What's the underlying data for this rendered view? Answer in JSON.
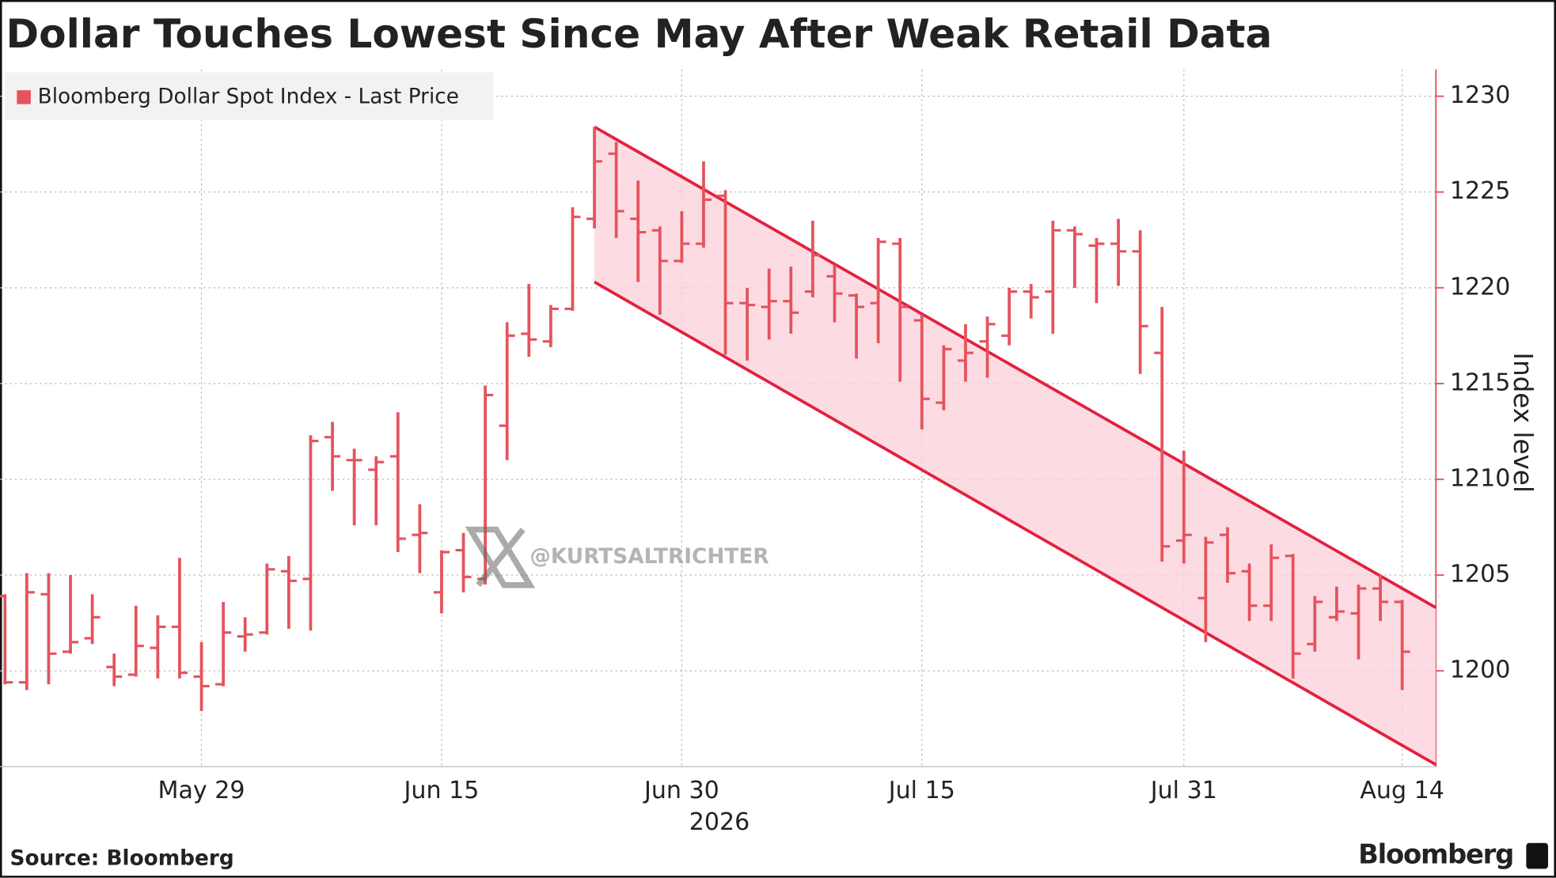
{
  "chart_data": {
    "type": "ohlc",
    "title": "Dollar Touches Lowest Since May After Weak Retail Data",
    "source": "Source: Bloomberg",
    "brand": "Bloomberg",
    "watermark": "@KURTSALTRICHTER",
    "y_label": "Index level",
    "x_axis_year": "2026",
    "grid": true,
    "legend": "top-left",
    "x": [
      "2026-05-18",
      "2026-05-19",
      "2026-05-20",
      "2026-05-21",
      "2026-05-22",
      "2026-05-25",
      "2026-05-26",
      "2026-05-27",
      "2026-05-28",
      "2026-05-29",
      "2026-06-01",
      "2026-06-02",
      "2026-06-03",
      "2026-06-04",
      "2026-06-05",
      "2026-06-08",
      "2026-06-09",
      "2026-06-10",
      "2026-06-11",
      "2026-06-12",
      "2026-06-15",
      "2026-06-16",
      "2026-06-17",
      "2026-06-18",
      "2026-06-19",
      "2026-06-22",
      "2026-06-23",
      "2026-06-24",
      "2026-06-25",
      "2026-06-26",
      "2026-06-29",
      "2026-06-30",
      "2026-07-01",
      "2026-07-02",
      "2026-07-03",
      "2026-07-06",
      "2026-07-07",
      "2026-07-08",
      "2026-07-09",
      "2026-07-10",
      "2026-07-13",
      "2026-07-14",
      "2026-07-15",
      "2026-07-16",
      "2026-07-17",
      "2026-07-20",
      "2026-07-21",
      "2026-07-22",
      "2026-07-23",
      "2026-07-24",
      "2026-07-27",
      "2026-07-28",
      "2026-07-29",
      "2026-07-30",
      "2026-07-31",
      "2026-08-03",
      "2026-08-04",
      "2026-08-05",
      "2026-08-06",
      "2026-08-07",
      "2026-08-10",
      "2026-08-11",
      "2026-08-12",
      "2026-08-13",
      "2026-08-14"
    ],
    "xticks": [
      {
        "value": "2026-05-29",
        "label": "May 29"
      },
      {
        "value": "2026-06-15",
        "label": "Jun 15"
      },
      {
        "value": "2026-06-30",
        "label": "Jun 30"
      },
      {
        "value": "2026-07-15",
        "label": "Jul 15"
      },
      {
        "value": "2026-07-31",
        "label": "Jul 31"
      },
      {
        "value": "2026-08-14",
        "label": "Aug 14"
      }
    ],
    "ylim": [
      1195,
      1231.4
    ],
    "yticks": [
      1200,
      1205,
      1210,
      1215,
      1220,
      1225,
      1230
    ],
    "series": [
      {
        "name": "Bloomberg Dollar Spot Index - Last Price",
        "color": "#e5535d",
        "open": [
          1203.9,
          1199.4,
          1204.0,
          1201.0,
          1201.7,
          1200.2,
          1199.8,
          1201.2,
          1202.3,
          1199.7,
          1199.3,
          1201.8,
          1202.0,
          1205.2,
          1204.8,
          1212.2,
          1211.0,
          1210.5,
          1211.2,
          1207.1,
          1204.1,
          1206.3,
          1204.8,
          1212.8,
          1217.6,
          1217.2,
          1218.9,
          1223.6,
          1227.0,
          1223.6,
          1223.0,
          1221.4,
          1222.3,
          1224.8,
          1219.2,
          1219.0,
          1219.3,
          1219.8,
          1220.6,
          1219.6,
          1219.2,
          1222.3,
          1218.3,
          1214.0,
          1216.2,
          1217.2,
          1217.5,
          1219.8,
          1219.8,
          1223.0,
          1222.2,
          1222.3,
          1221.9,
          1216.6,
          1206.8,
          1203.8,
          1207.1,
          1205.2,
          1203.4,
          1206.0,
          1201.4,
          1202.8,
          1203.0,
          1204.3,
          1203.6
        ],
        "high": [
          1204.0,
          1205.1,
          1205.1,
          1205.0,
          1204.0,
          1200.9,
          1203.4,
          1202.9,
          1205.9,
          1201.5,
          1203.6,
          1202.8,
          1205.6,
          1206.0,
          1212.3,
          1213.0,
          1211.6,
          1211.2,
          1213.5,
          1208.7,
          1206.3,
          1207.2,
          1214.9,
          1218.2,
          1220.2,
          1219.1,
          1224.2,
          1228.4,
          1227.6,
          1225.6,
          1223.2,
          1224.0,
          1226.6,
          1225.1,
          1220.0,
          1221.0,
          1221.1,
          1223.5,
          1221.2,
          1219.7,
          1222.6,
          1222.6,
          1218.6,
          1217.0,
          1218.1,
          1218.5,
          1220.0,
          1220.2,
          1223.5,
          1223.2,
          1222.6,
          1223.6,
          1223.0,
          1219.0,
          1211.5,
          1207.0,
          1207.5,
          1205.6,
          1206.6,
          1206.1,
          1203.9,
          1204.4,
          1204.5,
          1205.0,
          1203.7
        ],
        "low": [
          1199.3,
          1199.0,
          1199.3,
          1200.9,
          1201.4,
          1199.2,
          1199.7,
          1199.6,
          1199.6,
          1197.9,
          1199.2,
          1201.0,
          1201.9,
          1202.2,
          1202.1,
          1209.4,
          1207.6,
          1207.6,
          1206.2,
          1205.1,
          1203.0,
          1204.1,
          1204.5,
          1211.0,
          1216.4,
          1216.9,
          1218.8,
          1223.1,
          1222.6,
          1220.3,
          1218.6,
          1221.3,
          1222.1,
          1216.5,
          1216.2,
          1217.3,
          1217.6,
          1219.5,
          1218.2,
          1216.3,
          1217.1,
          1215.1,
          1212.6,
          1213.6,
          1215.1,
          1215.3,
          1217.0,
          1218.4,
          1217.6,
          1220.0,
          1219.2,
          1220.1,
          1215.5,
          1205.7,
          1205.6,
          1201.5,
          1204.6,
          1202.6,
          1202.6,
          1199.6,
          1201.0,
          1202.6,
          1200.6,
          1202.6,
          1199.0
        ],
        "close": [
          1199.4,
          1204.1,
          1200.9,
          1201.5,
          1202.8,
          1199.7,
          1201.3,
          1202.3,
          1199.9,
          1199.2,
          1202.0,
          1201.9,
          1205.3,
          1204.7,
          1212.0,
          1211.2,
          1211.0,
          1210.9,
          1206.9,
          1207.2,
          1206.2,
          1204.9,
          1214.4,
          1217.5,
          1217.3,
          1218.9,
          1223.7,
          1226.6,
          1224.0,
          1222.9,
          1221.4,
          1222.3,
          1224.6,
          1219.2,
          1219.1,
          1219.3,
          1218.7,
          1221.7,
          1219.7,
          1219.0,
          1222.4,
          1219.0,
          1214.2,
          1216.8,
          1216.6,
          1218.1,
          1219.8,
          1219.5,
          1223.0,
          1222.8,
          1222.3,
          1221.9,
          1218.0,
          1206.5,
          1207.1,
          1206.7,
          1205.1,
          1203.4,
          1205.9,
          1200.9,
          1203.6,
          1203.1,
          1204.3,
          1203.6,
          1201.0
        ]
      }
    ],
    "channel": {
      "start": "2026-06-24",
      "upper": [
        1228.4,
        1203.3
      ],
      "lower": [
        1220.3,
        1195.1
      ],
      "color": "#e3213f",
      "fill": "#fbd0d8"
    }
  }
}
